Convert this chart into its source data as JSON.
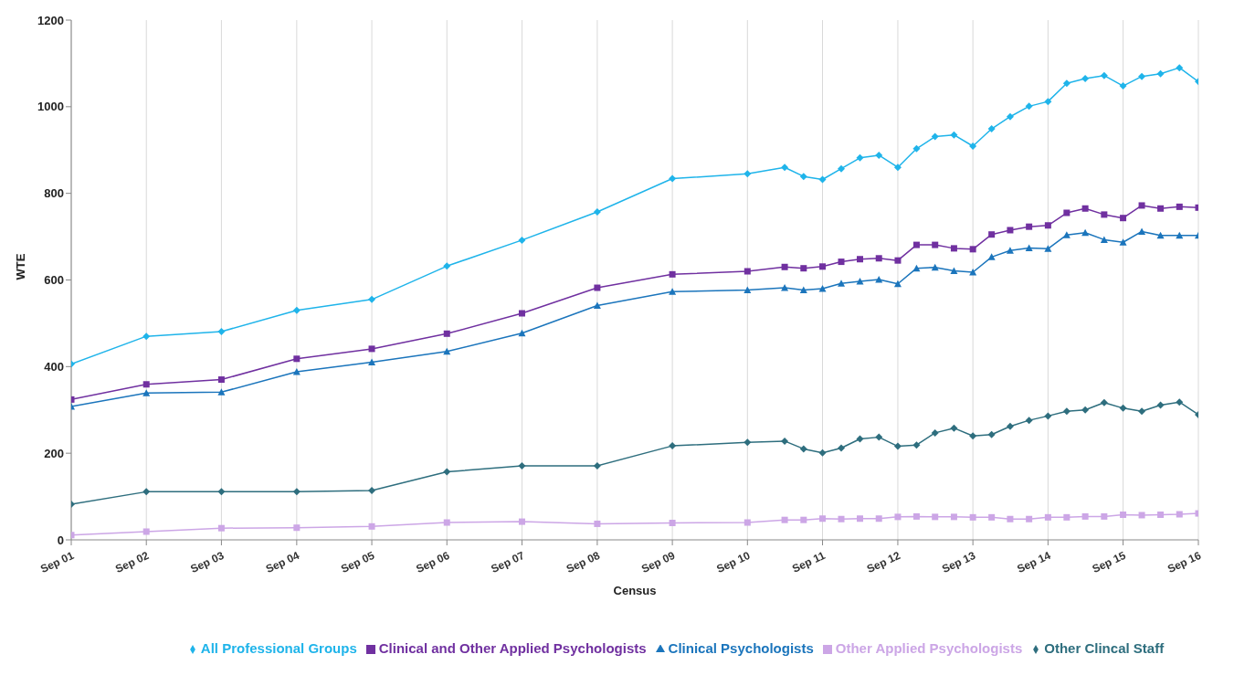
{
  "chart_data": {
    "type": "line",
    "xlabel": "Census",
    "ylabel": "WTE",
    "x": [
      "2001-09",
      "2002-09",
      "2003-09",
      "2004-09",
      "2005-09",
      "2006-09",
      "2007-09",
      "2008-09",
      "2009-09",
      "2010-09",
      "2011-03",
      "2011-06",
      "2011-09",
      "2011-12",
      "2012-03",
      "2012-06",
      "2012-09",
      "2012-12",
      "2013-03",
      "2013-06",
      "2013-09",
      "2013-12",
      "2014-03",
      "2014-06",
      "2014-09",
      "2014-12",
      "2015-03",
      "2015-06",
      "2015-09",
      "2015-12",
      "2016-03",
      "2016-06",
      "2016-09"
    ],
    "xlim": [
      "2001-09",
      "2016-09"
    ],
    "xticks": [
      {
        "value": "2001-09",
        "label": "Sep 01"
      },
      {
        "value": "2002-09",
        "label": "Sep 02"
      },
      {
        "value": "2003-09",
        "label": "Sep 03"
      },
      {
        "value": "2004-09",
        "label": "Sep 04"
      },
      {
        "value": "2005-09",
        "label": "Sep 05"
      },
      {
        "value": "2006-09",
        "label": "Sep 06"
      },
      {
        "value": "2007-09",
        "label": "Sep 07"
      },
      {
        "value": "2008-09",
        "label": "Sep 08"
      },
      {
        "value": "2009-09",
        "label": "Sep 09"
      },
      {
        "value": "2010-09",
        "label": "Sep 10"
      },
      {
        "value": "2011-09",
        "label": "Sep 11"
      },
      {
        "value": "2012-09",
        "label": "Sep 12"
      },
      {
        "value": "2013-09",
        "label": "Sep 13"
      },
      {
        "value": "2014-09",
        "label": "Sep 14"
      },
      {
        "value": "2015-09",
        "label": "Sep 15"
      },
      {
        "value": "2016-09",
        "label": "Sep 16"
      }
    ],
    "ylim": [
      0,
      1200
    ],
    "yticks": [
      0,
      200,
      400,
      600,
      800,
      1000,
      1200
    ],
    "grid": "x",
    "legend": "bottom",
    "line_style": "solid",
    "series": [
      {
        "name": "All Professional Groups",
        "color": "#1fb4ea",
        "marker": "diamond",
        "values": [
          406,
          470,
          481,
          530,
          555,
          632,
          692,
          757,
          834,
          845,
          860,
          839,
          832,
          857,
          882,
          888,
          860,
          903,
          931,
          935,
          909,
          949,
          977,
          1001,
          1012,
          1054,
          1065,
          1072,
          1048,
          1070,
          1076,
          1090,
          1058
        ]
      },
      {
        "name": "Clinical and Other Applied Psychologists",
        "color": "#7030a0",
        "marker": "square",
        "values": [
          324,
          359,
          370,
          418,
          441,
          476,
          523,
          582,
          613,
          620,
          630,
          627,
          631,
          642,
          648,
          650,
          645,
          681,
          681,
          673,
          671,
          705,
          715,
          723,
          726,
          755,
          765,
          751,
          743,
          772,
          765,
          769,
          767
        ]
      },
      {
        "name": "Clinical Psychologists",
        "color": "#1b75bc",
        "marker": "triangle",
        "values": [
          308,
          339,
          341,
          388,
          410,
          435,
          477,
          541,
          573,
          577,
          582,
          577,
          580,
          592,
          597,
          601,
          591,
          627,
          629,
          621,
          618,
          653,
          668,
          674,
          672,
          704,
          709,
          693,
          687,
          712,
          703,
          703,
          703
        ]
      },
      {
        "name": "Other Applied Psychologists",
        "color": "#cca6e6",
        "marker": "square",
        "values": [
          11,
          19,
          27,
          28,
          31,
          40,
          42,
          37,
          39,
          40,
          46,
          46,
          49,
          48,
          49,
          49,
          53,
          54,
          53,
          53,
          52,
          52,
          48,
          48,
          52,
          52,
          54,
          54,
          58,
          57,
          58,
          59,
          61
        ]
      },
      {
        "name": "Other Clincal Staff",
        "color": "#2e6e7e",
        "marker": "diamond",
        "values": [
          82,
          111,
          111,
          111,
          114,
          157,
          171,
          171,
          217,
          225,
          228,
          210,
          201,
          212,
          233,
          237,
          216,
          219,
          247,
          258,
          240,
          243,
          262,
          276,
          286,
          297,
          300,
          317,
          304,
          297,
          311,
          318,
          289
        ]
      }
    ]
  }
}
